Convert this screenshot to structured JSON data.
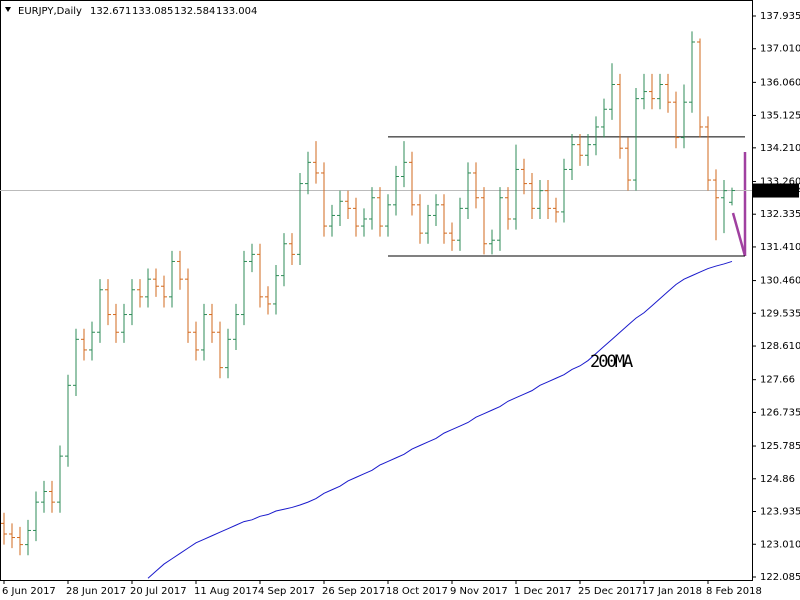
{
  "chart_data": {
    "type": "ohlc",
    "symbol": "EURJPY,Daily",
    "categories": [
      "6 Jun 2017",
      null,
      null,
      null,
      null,
      null,
      null,
      null,
      "28 Jun 2017",
      null,
      null,
      null,
      null,
      null,
      null,
      null,
      "20 Jul 2017",
      null,
      null,
      null,
      null,
      null,
      null,
      null,
      "11 Aug 2017",
      null,
      null,
      null,
      null,
      null,
      null,
      null,
      "4 Sep 2017",
      null,
      null,
      null,
      null,
      null,
      null,
      null,
      "26 Sep 2017",
      null,
      null,
      null,
      null,
      null,
      null,
      null,
      "18 Oct 2017",
      null,
      null,
      null,
      null,
      null,
      null,
      null,
      "9 Nov 2017",
      null,
      null,
      null,
      null,
      null,
      null,
      null,
      "1 Dec 2017",
      null,
      null,
      null,
      null,
      null,
      null,
      null,
      "25 Dec 2017",
      null,
      null,
      null,
      null,
      null,
      null,
      null,
      "17 Jan 2018",
      null,
      null,
      null,
      null,
      null,
      null,
      null,
      "8 Feb 2018",
      null,
      null,
      null
    ],
    "open": [
      123.6,
      123.3,
      123.2,
      123.0,
      123.4,
      124.2,
      124.5,
      124.2,
      125.5,
      127.5,
      128.8,
      128.5,
      129.0,
      130.2,
      129.5,
      129.0,
      129.5,
      130.2,
      130.0,
      130.5,
      130.3,
      130.0,
      131.0,
      130.5,
      129.0,
      128.5,
      129.5,
      129.0,
      128.0,
      128.8,
      129.5,
      131.0,
      131.2,
      130.0,
      129.8,
      130.6,
      131.5,
      131.2,
      133.2,
      133.8,
      133.5,
      132.0,
      132.3,
      132.7,
      132.5,
      132.0,
      132.2,
      132.8,
      132.0,
      132.6,
      133.4,
      133.8,
      132.6,
      131.8,
      132.3,
      132.6,
      131.8,
      131.6,
      132.5,
      133.5,
      132.8,
      131.5,
      131.6,
      132.8,
      132.2,
      133.6,
      133.2,
      132.5,
      133.0,
      132.5,
      132.4,
      133.6,
      134.3,
      134.0,
      134.3,
      134.8,
      135.3,
      136.0,
      134.2,
      133.3,
      135.6,
      135.8,
      135.6,
      136.0,
      135.5,
      134.5,
      135.5,
      137.2,
      134.8,
      133.3,
      132.8,
      132.671
    ],
    "high": [
      123.9,
      123.6,
      123.5,
      123.7,
      124.5,
      124.8,
      124.8,
      125.8,
      127.8,
      129.1,
      129.1,
      129.3,
      130.5,
      130.5,
      129.8,
      129.8,
      130.5,
      130.5,
      130.8,
      130.8,
      130.6,
      131.3,
      131.3,
      130.8,
      129.3,
      129.8,
      129.8,
      129.3,
      129.1,
      129.8,
      131.3,
      131.5,
      131.5,
      130.3,
      130.9,
      131.8,
      131.8,
      133.5,
      134.1,
      134.4,
      133.8,
      132.6,
      133.0,
      133.0,
      132.8,
      132.5,
      133.1,
      133.1,
      132.9,
      133.7,
      134.4,
      134.1,
      132.9,
      132.6,
      132.9,
      132.9,
      132.1,
      132.8,
      133.8,
      133.8,
      133.1,
      131.9,
      133.1,
      133.1,
      134.3,
      133.9,
      133.5,
      133.3,
      133.3,
      132.8,
      133.9,
      134.6,
      134.6,
      134.6,
      135.1,
      135.6,
      136.6,
      136.3,
      134.5,
      135.9,
      136.3,
      136.3,
      136.3,
      136.3,
      135.8,
      136.0,
      137.5,
      137.3,
      135.1,
      133.6,
      133.3,
      133.085
    ],
    "low": [
      123.0,
      122.9,
      122.7,
      122.7,
      123.1,
      123.9,
      123.9,
      123.9,
      125.2,
      127.2,
      128.2,
      128.2,
      128.7,
      129.2,
      128.7,
      128.7,
      129.2,
      129.7,
      129.7,
      130.0,
      129.7,
      129.7,
      130.2,
      128.7,
      128.2,
      128.2,
      128.7,
      127.7,
      127.7,
      128.5,
      129.2,
      130.7,
      129.7,
      129.5,
      129.5,
      130.3,
      130.9,
      130.9,
      132.9,
      133.2,
      131.7,
      131.7,
      132.0,
      132.2,
      131.7,
      131.7,
      131.9,
      131.7,
      131.7,
      132.3,
      133.1,
      132.3,
      131.5,
      131.5,
      132.0,
      131.5,
      131.3,
      131.3,
      132.2,
      132.5,
      131.2,
      131.2,
      131.3,
      131.9,
      131.9,
      132.9,
      132.2,
      132.2,
      132.2,
      132.1,
      132.1,
      133.3,
      133.7,
      133.7,
      134.0,
      134.5,
      135.0,
      133.9,
      133.0,
      133.0,
      135.3,
      135.3,
      135.3,
      135.2,
      134.2,
      134.2,
      135.2,
      134.5,
      133.0,
      131.6,
      131.8,
      132.584
    ],
    "close": [
      123.3,
      123.2,
      123.0,
      123.4,
      124.2,
      124.5,
      124.2,
      125.5,
      127.5,
      128.8,
      128.5,
      129.0,
      130.2,
      129.5,
      129.0,
      129.5,
      130.2,
      130.0,
      130.5,
      130.3,
      130.0,
      131.0,
      130.5,
      129.0,
      128.5,
      129.5,
      129.0,
      128.0,
      128.8,
      129.5,
      131.0,
      131.2,
      130.0,
      129.8,
      130.6,
      131.5,
      131.2,
      133.2,
      133.8,
      133.5,
      132.0,
      132.3,
      132.7,
      132.5,
      132.0,
      132.2,
      132.8,
      132.0,
      132.6,
      133.4,
      133.8,
      132.6,
      131.8,
      132.3,
      132.6,
      131.8,
      131.6,
      132.5,
      133.5,
      132.8,
      131.5,
      131.6,
      132.8,
      132.2,
      133.6,
      133.2,
      132.5,
      133.0,
      132.5,
      132.4,
      133.6,
      134.3,
      134.0,
      134.3,
      134.8,
      135.3,
      136.0,
      134.2,
      133.3,
      135.6,
      135.8,
      135.6,
      136.0,
      135.5,
      134.5,
      135.5,
      137.2,
      134.8,
      133.3,
      132.8,
      133.0,
      133.004
    ],
    "up_color": "#2e8b57",
    "down_color": "#d2691e",
    "ma": {
      "name": "200MA",
      "color": "#1a1acc",
      "values": [
        null,
        null,
        null,
        null,
        null,
        null,
        null,
        null,
        null,
        null,
        null,
        null,
        null,
        null,
        null,
        null,
        null,
        null,
        122.05,
        122.25,
        122.45,
        122.6,
        122.75,
        122.9,
        123.05,
        123.15,
        123.25,
        123.35,
        123.45,
        123.55,
        123.65,
        123.7,
        123.8,
        123.85,
        123.95,
        124.0,
        124.05,
        124.12,
        124.2,
        124.3,
        124.45,
        124.55,
        124.65,
        124.8,
        124.9,
        125.0,
        125.1,
        125.25,
        125.35,
        125.45,
        125.55,
        125.7,
        125.8,
        125.9,
        126.0,
        126.15,
        126.25,
        126.35,
        126.45,
        126.6,
        126.7,
        126.8,
        126.9,
        127.05,
        127.15,
        127.25,
        127.35,
        127.5,
        127.6,
        127.7,
        127.8,
        127.95,
        128.05,
        128.2,
        128.4,
        128.6,
        128.8,
        129.0,
        129.2,
        129.4,
        129.55,
        129.75,
        129.95,
        130.15,
        130.35,
        130.5,
        130.6,
        130.7,
        130.8,
        130.87,
        130.93,
        131.0
      ]
    },
    "levels": [
      134.52,
      131.155
    ],
    "ylim": [
      122.0,
      138.387
    ],
    "yticks": [
      122.085,
      {
        "value": 123.01,
        "label": "123.010"
      },
      123.935,
      124.86,
      125.785,
      126.735,
      127.66,
      {
        "value": 128.61,
        "label": "128.610"
      },
      129.535,
      {
        "value": 130.46,
        "label": "130.460"
      },
      {
        "value": 131.41,
        "label": "131.410"
      },
      132.335,
      {
        "value": 133.26,
        "label": "133.260"
      },
      {
        "value": 134.21,
        "label": "134.210"
      },
      135.125,
      {
        "value": 136.06,
        "label": "136.060"
      },
      {
        "value": 137.01,
        "label": "137.010"
      },
      137.935
    ]
  }
}
